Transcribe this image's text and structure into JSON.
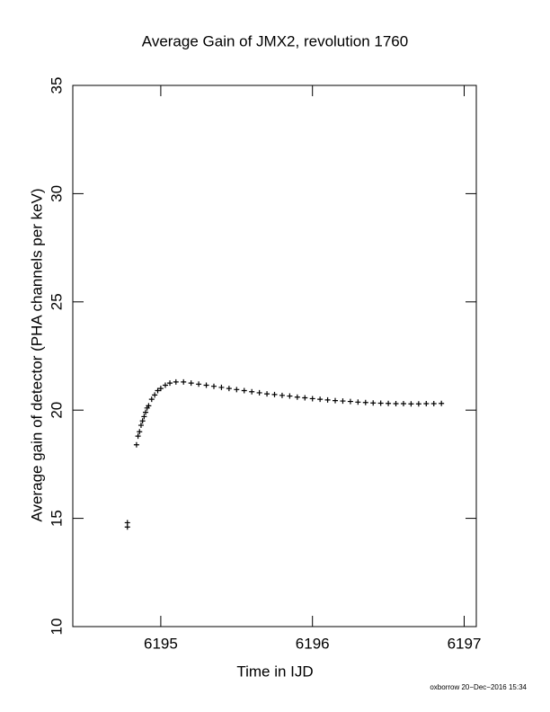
{
  "chart_data": {
    "type": "scatter",
    "title": "Average Gain of JMX2, revolution 1760",
    "xlabel": "Time in IJD",
    "ylabel": "Average gain of detector (PHA channels per keV)",
    "annotation": "oxborrow 20−Dec−2016 15:34",
    "marker": "+",
    "color": "#000000",
    "xlim": [
      6194.42,
      6197.08
    ],
    "ylim": [
      10,
      35
    ],
    "xticks": [
      6195,
      6196,
      6197
    ],
    "yticks": [
      10,
      15,
      20,
      25,
      30,
      35
    ],
    "series": [
      {
        "name": "JMX2",
        "color": "#000000",
        "x": [
          6194.78,
          6194.78,
          6194.84,
          6194.85,
          6194.86,
          6194.87,
          6194.88,
          6194.89,
          6194.9,
          6194.91,
          6194.92,
          6194.94,
          6194.96,
          6194.98,
          6195.0,
          6195.03,
          6195.06,
          6195.1,
          6195.15,
          6195.2,
          6195.25,
          6195.3,
          6195.35,
          6195.4,
          6195.45,
          6195.5,
          6195.55,
          6195.6,
          6195.65,
          6195.7,
          6195.75,
          6195.8,
          6195.85,
          6195.9,
          6195.95,
          6196.0,
          6196.05,
          6196.1,
          6196.15,
          6196.2,
          6196.25,
          6196.3,
          6196.35,
          6196.4,
          6196.45,
          6196.5,
          6196.55,
          6196.6,
          6196.65,
          6196.7,
          6196.75,
          6196.8,
          6196.85
        ],
        "values": [
          14.6,
          14.8,
          18.4,
          18.8,
          19.0,
          19.3,
          19.5,
          19.7,
          19.9,
          20.1,
          20.2,
          20.5,
          20.7,
          20.9,
          21.0,
          21.15,
          21.25,
          21.3,
          21.3,
          21.25,
          21.2,
          21.15,
          21.1,
          21.05,
          21.0,
          20.95,
          20.9,
          20.85,
          20.8,
          20.75,
          20.72,
          20.68,
          20.65,
          20.6,
          20.57,
          20.53,
          20.5,
          20.47,
          20.44,
          20.42,
          20.4,
          20.37,
          20.35,
          20.33,
          20.32,
          20.31,
          20.3,
          20.3,
          20.29,
          20.29,
          20.3,
          20.3,
          20.31
        ]
      }
    ]
  }
}
